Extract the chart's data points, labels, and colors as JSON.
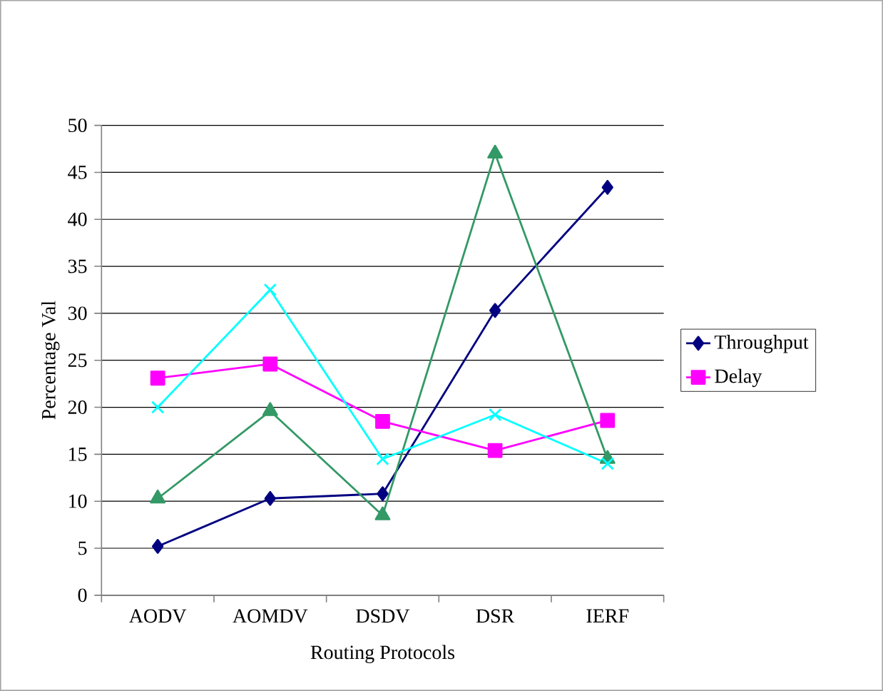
{
  "chart_data": {
    "type": "line",
    "xlabel": "Routing Protocols",
    "ylabel": "Percentage Val",
    "categories": [
      "AODV",
      "AOMDV",
      "DSDV",
      "DSR",
      "IERF"
    ],
    "series": [
      {
        "name": "Throughput",
        "color": "#000080",
        "marker": "diamond",
        "values": [
          5.2,
          10.3,
          10.8,
          30.3,
          43.4
        ]
      },
      {
        "name": "Delay",
        "color": "#ff00ff",
        "marker": "square",
        "values": [
          23.1,
          24.6,
          18.5,
          15.4,
          18.6
        ]
      },
      {
        "color": "#339966",
        "marker": "triangle",
        "values": [
          10.3,
          19.6,
          8.5,
          47,
          14.5
        ]
      },
      {
        "color": "#00ffff",
        "marker": "cross",
        "values": [
          20,
          32.5,
          14.5,
          19.2,
          14
        ]
      }
    ],
    "ylim": [
      0,
      50
    ],
    "yticks": [
      0,
      5,
      10,
      15,
      20,
      25,
      30,
      35,
      40,
      45,
      50
    ],
    "grid": "y",
    "legend": "right"
  }
}
